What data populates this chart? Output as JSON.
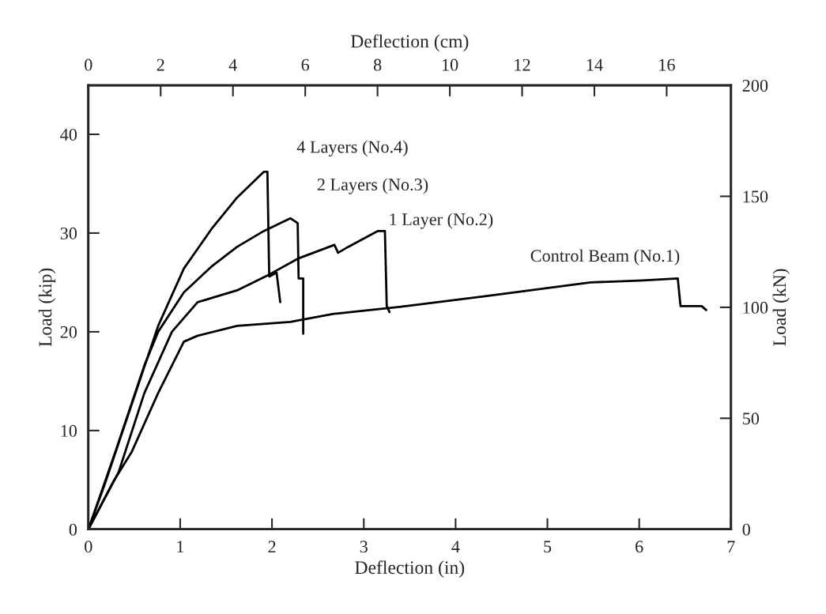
{
  "chart_data": {
    "type": "line",
    "xlabel": "Deflection (in)",
    "ylabel": "Load (kip)",
    "x2label": "Deflection (cm)",
    "y2label": "Load (kN)",
    "xlim": [
      0,
      7
    ],
    "xticks": [
      0,
      1,
      2,
      3,
      4,
      5,
      6,
      7
    ],
    "ylim": [
      0,
      44.96
    ],
    "yticks": [
      0,
      10,
      20,
      30,
      40
    ],
    "x2lim": [
      0,
      17.78
    ],
    "x2ticks": [
      0,
      2,
      4,
      6,
      8,
      10,
      12,
      14,
      16
    ],
    "y2lim": [
      0,
      200
    ],
    "y2ticks": [
      0,
      50,
      100,
      150,
      200
    ],
    "grid": false,
    "legend": false,
    "marker": "none",
    "line_style": "solid",
    "series": [
      {
        "name": "4 Layers (No.4)",
        "color": "#000000",
        "x": [
          0,
          0.18,
          0.47,
          0.76,
          1.04,
          1.34,
          1.62,
          1.91,
          1.95,
          1.97,
          2.05,
          2.09
        ],
        "values": [
          0,
          4.6,
          12.6,
          20.6,
          26.4,
          30.4,
          33.6,
          36.2,
          36.2,
          25.6,
          26.0,
          23.0
        ]
      },
      {
        "name": "2 Layers (No.3)",
        "color": "#000000",
        "x": [
          0,
          0.3,
          0.61,
          0.76,
          1.04,
          1.34,
          1.62,
          1.91,
          2.2,
          2.28,
          2.29,
          2.34,
          2.34
        ],
        "values": [
          0,
          8.0,
          16.6,
          20.0,
          24.0,
          26.6,
          28.6,
          30.2,
          31.5,
          31.0,
          25.4,
          25.4,
          19.8
        ]
      },
      {
        "name": "1 Layer (No.2)",
        "color": "#000000",
        "x": [
          0,
          0.33,
          0.61,
          0.91,
          1.19,
          1.62,
          1.97,
          2.28,
          2.68,
          2.72,
          2.83,
          3.15,
          3.23,
          3.25,
          3.28
        ],
        "values": [
          0,
          5.8,
          13.8,
          20.0,
          23.0,
          24.2,
          25.8,
          27.4,
          28.8,
          28.0,
          28.6,
          30.2,
          30.2,
          22.6,
          22.0
        ]
      },
      {
        "name": "Control Beam (No.1)",
        "color": "#000000",
        "x": [
          0,
          0.27,
          0.47,
          0.76,
          1.04,
          1.19,
          1.62,
          2.2,
          2.66,
          3.46,
          4.32,
          5.47,
          6.04,
          6.42,
          6.45,
          6.68,
          6.73
        ],
        "values": [
          0,
          4.8,
          7.8,
          13.8,
          19.0,
          19.6,
          20.6,
          21.0,
          21.8,
          22.6,
          23.6,
          25.0,
          25.2,
          25.4,
          22.6,
          22.6,
          22.2
        ]
      }
    ]
  }
}
